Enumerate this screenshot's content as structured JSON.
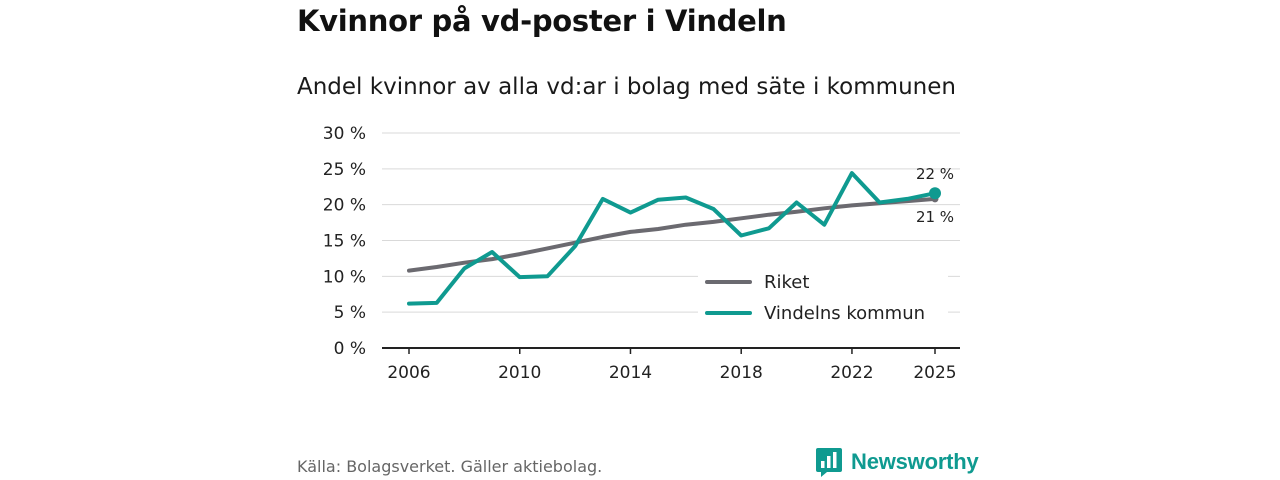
{
  "header": {
    "title": "Kvinnor på vd-poster i Vindeln",
    "subtitle": "Andel kvinnor av alla vd:ar i bolag med säte i kommunen"
  },
  "footer": {
    "source": "Källa: Bolagsverket. Gäller aktiebolag.",
    "brand": "Newsworthy"
  },
  "colors": {
    "riket": "#6b6a70",
    "vindeln": "#0f9a90",
    "grid": "#d9d9d9",
    "axis": "#222222"
  },
  "chart_data": {
    "type": "line",
    "title": "Andel kvinnor av alla vd:ar i bolag med säte i kommunen",
    "xlabel": "",
    "ylabel": "",
    "xlim": [
      2006,
      2025
    ],
    "ylim": [
      0,
      30
    ],
    "x_ticks": [
      2006,
      2010,
      2014,
      2018,
      2022,
      2025
    ],
    "x_tick_labels": [
      "2006",
      "2010",
      "2014",
      "2018",
      "2022",
      "2025"
    ],
    "y_ticks": [
      0,
      5,
      10,
      15,
      20,
      25,
      30
    ],
    "y_tick_labels": [
      "0 %",
      "5 %",
      "10 %",
      "15 %",
      "20 %",
      "25 %",
      "30 %"
    ],
    "grid": true,
    "legend_position": "bottom-right",
    "x": [
      2006,
      2007,
      2008,
      2009,
      2010,
      2011,
      2012,
      2013,
      2014,
      2015,
      2016,
      2017,
      2018,
      2019,
      2020,
      2021,
      2022,
      2023,
      2024,
      2025
    ],
    "series": [
      {
        "name": "Riket",
        "color_key": "riket",
        "values": [
          10.8,
          11.3,
          11.9,
          12.4,
          13.1,
          13.9,
          14.7,
          15.5,
          16.2,
          16.6,
          17.2,
          17.6,
          18.1,
          18.6,
          19.0,
          19.5,
          19.9,
          20.2,
          20.5,
          20.8
        ],
        "end_label": "21 %"
      },
      {
        "name": "Vindelns kommun",
        "color_key": "vindeln",
        "values": [
          6.2,
          6.3,
          11.1,
          13.4,
          9.9,
          10.0,
          14.2,
          20.8,
          18.9,
          20.7,
          21.0,
          19.4,
          15.7,
          16.7,
          20.3,
          17.2,
          24.4,
          20.3,
          20.8,
          21.6
        ],
        "end_label": "22 %"
      }
    ]
  }
}
